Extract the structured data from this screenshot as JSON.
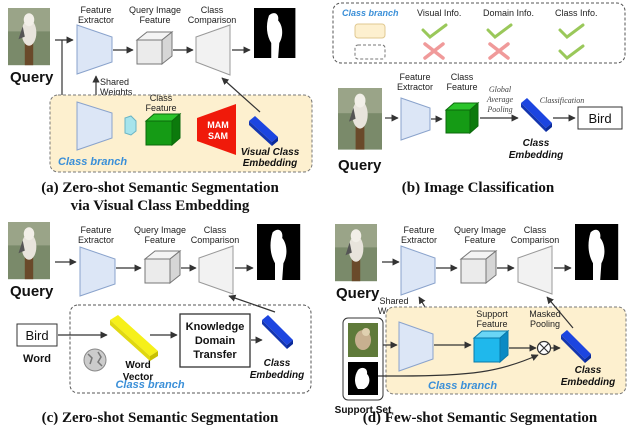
{
  "common": {
    "query": "Query",
    "feature_extractor": [
      "Feature",
      "Extractor"
    ],
    "query_image_feature": [
      "Query Image",
      "Feature"
    ],
    "class_comparison": [
      "Class",
      "Comparison"
    ],
    "shared_weights": [
      "Shared",
      "Weights"
    ],
    "class_branch": "Class branch",
    "class_embedding": [
      "Class",
      "Embedding"
    ]
  },
  "panel_a": {
    "class_feature": [
      "Class",
      "Feature"
    ],
    "mam": "MAM",
    "sam": "SAM",
    "visual_class_embedding": [
      "Visual Class",
      "Embedding"
    ],
    "caption": [
      "(a) Zero-shot Semantic Segmentation",
      "via Visual Class Embedding"
    ]
  },
  "panel_b": {
    "legend": {
      "class_branch": "Class branch",
      "visual_info": "Visual Info.",
      "domain_info": "Domain Info.",
      "class_info": "Class Info."
    },
    "class_feature": [
      "Class",
      "Feature"
    ],
    "global_average_pooling": [
      "Global",
      "Average",
      "Pooling"
    ],
    "classification": "Classification",
    "output": "Bird",
    "caption": "(b) Image Classification"
  },
  "panel_c": {
    "input_word": "Bird",
    "word_label": "Word",
    "word_vector": [
      "Word",
      "Vector"
    ],
    "knowledge_transfer": [
      "Knowledge",
      "Domain",
      "Transfer"
    ],
    "caption": "(c) Zero-shot Semantic Segmentation"
  },
  "panel_d": {
    "support_feature": [
      "Support",
      "Feature"
    ],
    "masked_pooling": [
      "Masked",
      "Pooling"
    ],
    "support_set": "Support Set",
    "caption": "(d) Few-shot Semantic Segmentation"
  },
  "colors": {
    "class_branch_fill": "#fdf0cf",
    "extractor_fill": "#dce6f6",
    "extractor_stroke": "#8aa3cc",
    "class_feature_green": "#159b15",
    "support_feature_cyan": "#1fb8ec",
    "mam_red": "#f01a0a",
    "embedding_blue": "#1c45e0",
    "word_vector_yellow": "#f6f01a",
    "check_green": "#9ac85a",
    "cross_red": "#f09a9a",
    "branch_text_blue": "#3a8fd8"
  }
}
